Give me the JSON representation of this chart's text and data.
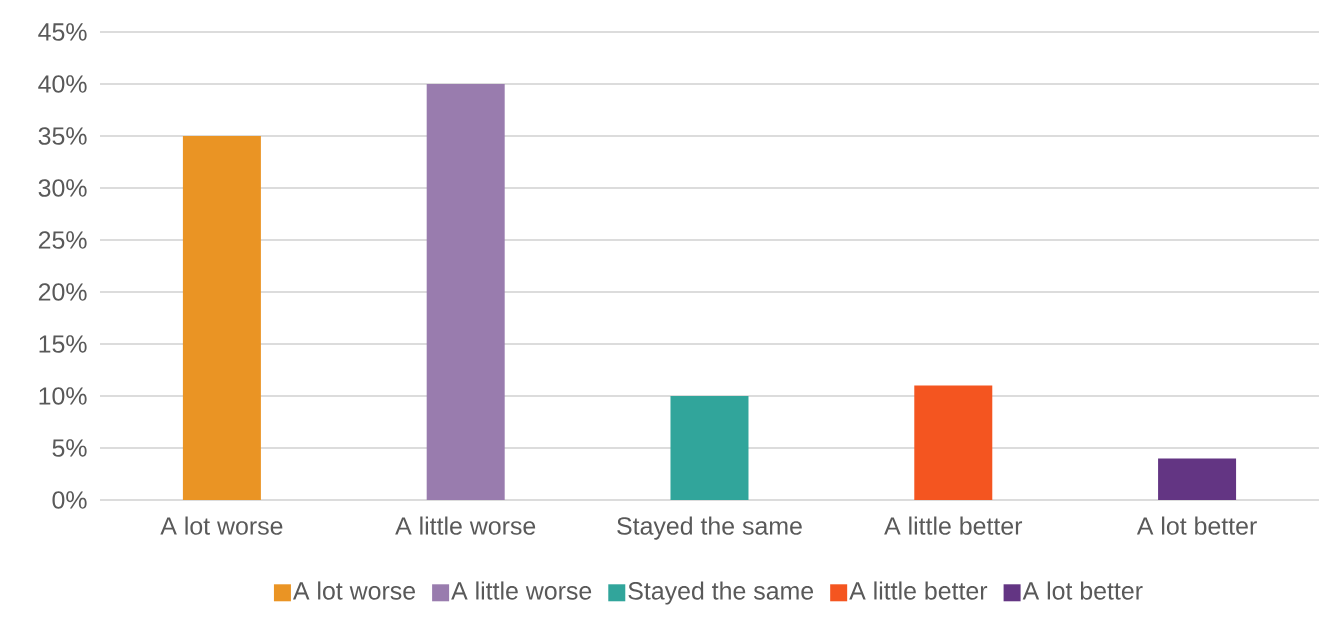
{
  "chart_data": {
    "type": "bar",
    "categories": [
      "A lot worse",
      "A little worse",
      "Stayed the same",
      "A little better",
      "A lot better"
    ],
    "series": [
      {
        "name": "A lot worse",
        "color": "#ea9424",
        "values": [
          35,
          null,
          null,
          null,
          null
        ]
      },
      {
        "name": "A little worse",
        "color": "#997cae",
        "values": [
          null,
          40,
          null,
          null,
          null
        ]
      },
      {
        "name": "Stayed the same",
        "color": "#31a59b",
        "values": [
          null,
          null,
          10,
          null,
          null
        ]
      },
      {
        "name": "A little better",
        "color": "#f45520",
        "values": [
          null,
          null,
          null,
          11,
          null
        ]
      },
      {
        "name": "A lot better",
        "color": "#633583",
        "values": [
          null,
          null,
          null,
          null,
          4
        ]
      }
    ],
    "ylim": [
      0,
      45
    ],
    "yticks": [
      {
        "value": 0,
        "label": "0%"
      },
      {
        "value": 5,
        "label": "5%"
      },
      {
        "value": 10,
        "label": "10%"
      },
      {
        "value": 15,
        "label": "15%"
      },
      {
        "value": 20,
        "label": "20%"
      },
      {
        "value": 25,
        "label": "25%"
      },
      {
        "value": 30,
        "label": "30%"
      },
      {
        "value": 35,
        "label": "35%"
      },
      {
        "value": 40,
        "label": "40%"
      },
      {
        "value": 45,
        "label": "45%"
      }
    ],
    "grid": "y",
    "legend": "bottom"
  }
}
